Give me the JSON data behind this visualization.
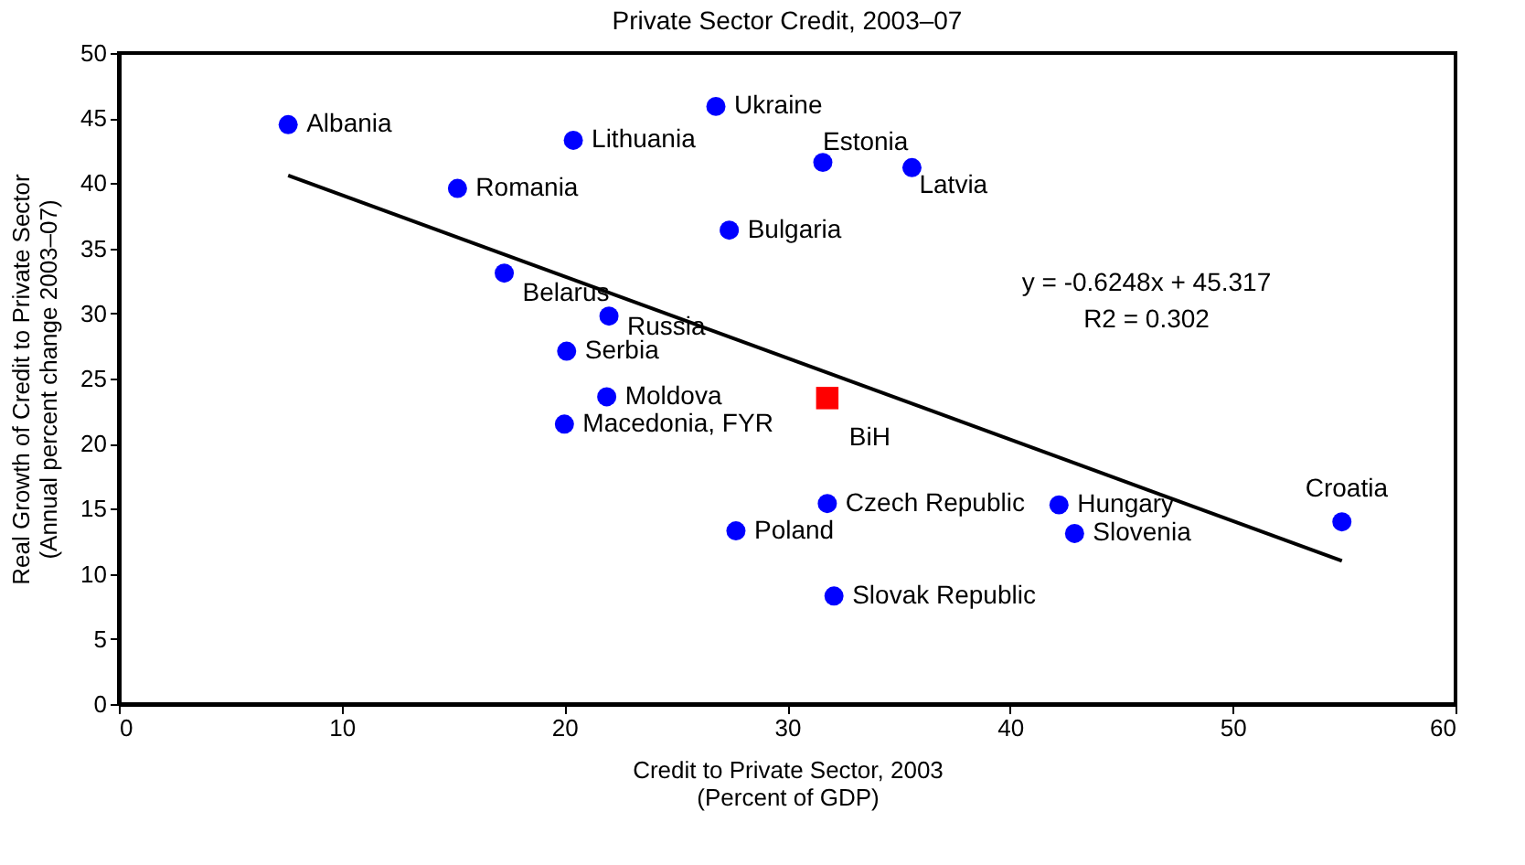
{
  "chart_data": {
    "type": "scatter",
    "title": "Private Sector Credit, 2003–07",
    "xlabel": "Credit to Private Sector, 2003\n(Percent of GDP)",
    "ylabel": "Real Growth of Credit to Private Sector\n(Annual percent change 2003–07)",
    "xlim": [
      0,
      60
    ],
    "xticks": [
      0,
      10,
      20,
      30,
      40,
      50,
      60
    ],
    "ylim": [
      0,
      50
    ],
    "yticks": [
      0,
      5,
      10,
      15,
      20,
      25,
      30,
      35,
      40,
      45,
      50
    ],
    "grid": false,
    "annotations": [
      "y = -0.6248x + 45.317",
      "R2 = 0.302"
    ],
    "series": [
      {
        "type": "scatter",
        "marker": "circle",
        "color": "#0000ff",
        "x": [
          7.6,
          20.4,
          26.8,
          15.2,
          31.6,
          35.6,
          27.4,
          17.3,
          22.0,
          20.1,
          21.9,
          20.0,
          31.8,
          42.2,
          42.9,
          27.7,
          32.1,
          54.9
        ],
        "values": [
          44.5,
          43.3,
          45.9,
          39.6,
          41.6,
          41.2,
          36.4,
          33.1,
          29.8,
          27.1,
          23.6,
          21.5,
          15.4,
          15.3,
          13.1,
          13.3,
          8.3,
          14.0
        ],
        "value_labels": [
          "Albania",
          "Lithuania",
          "Ukraine",
          "Romania",
          "Estonia",
          "Latvia",
          "Bulgaria",
          "Belarus",
          "Russia",
          "Serbia",
          "Moldova",
          "Macedonia, FYR",
          "Czech Republic",
          "Hungary",
          "Slovenia",
          "Poland",
          "Slovak Republic",
          "Croatia"
        ]
      },
      {
        "type": "scatter",
        "marker": "square",
        "color": "#ff0000",
        "x": [
          31.8
        ],
        "values": [
          23.5
        ],
        "value_labels": [
          "BiH"
        ]
      },
      {
        "type": "line",
        "marker": "none",
        "color": "#000000",
        "x": [
          7.6,
          54.9
        ],
        "values": [
          40.6,
          11.0
        ]
      }
    ]
  }
}
